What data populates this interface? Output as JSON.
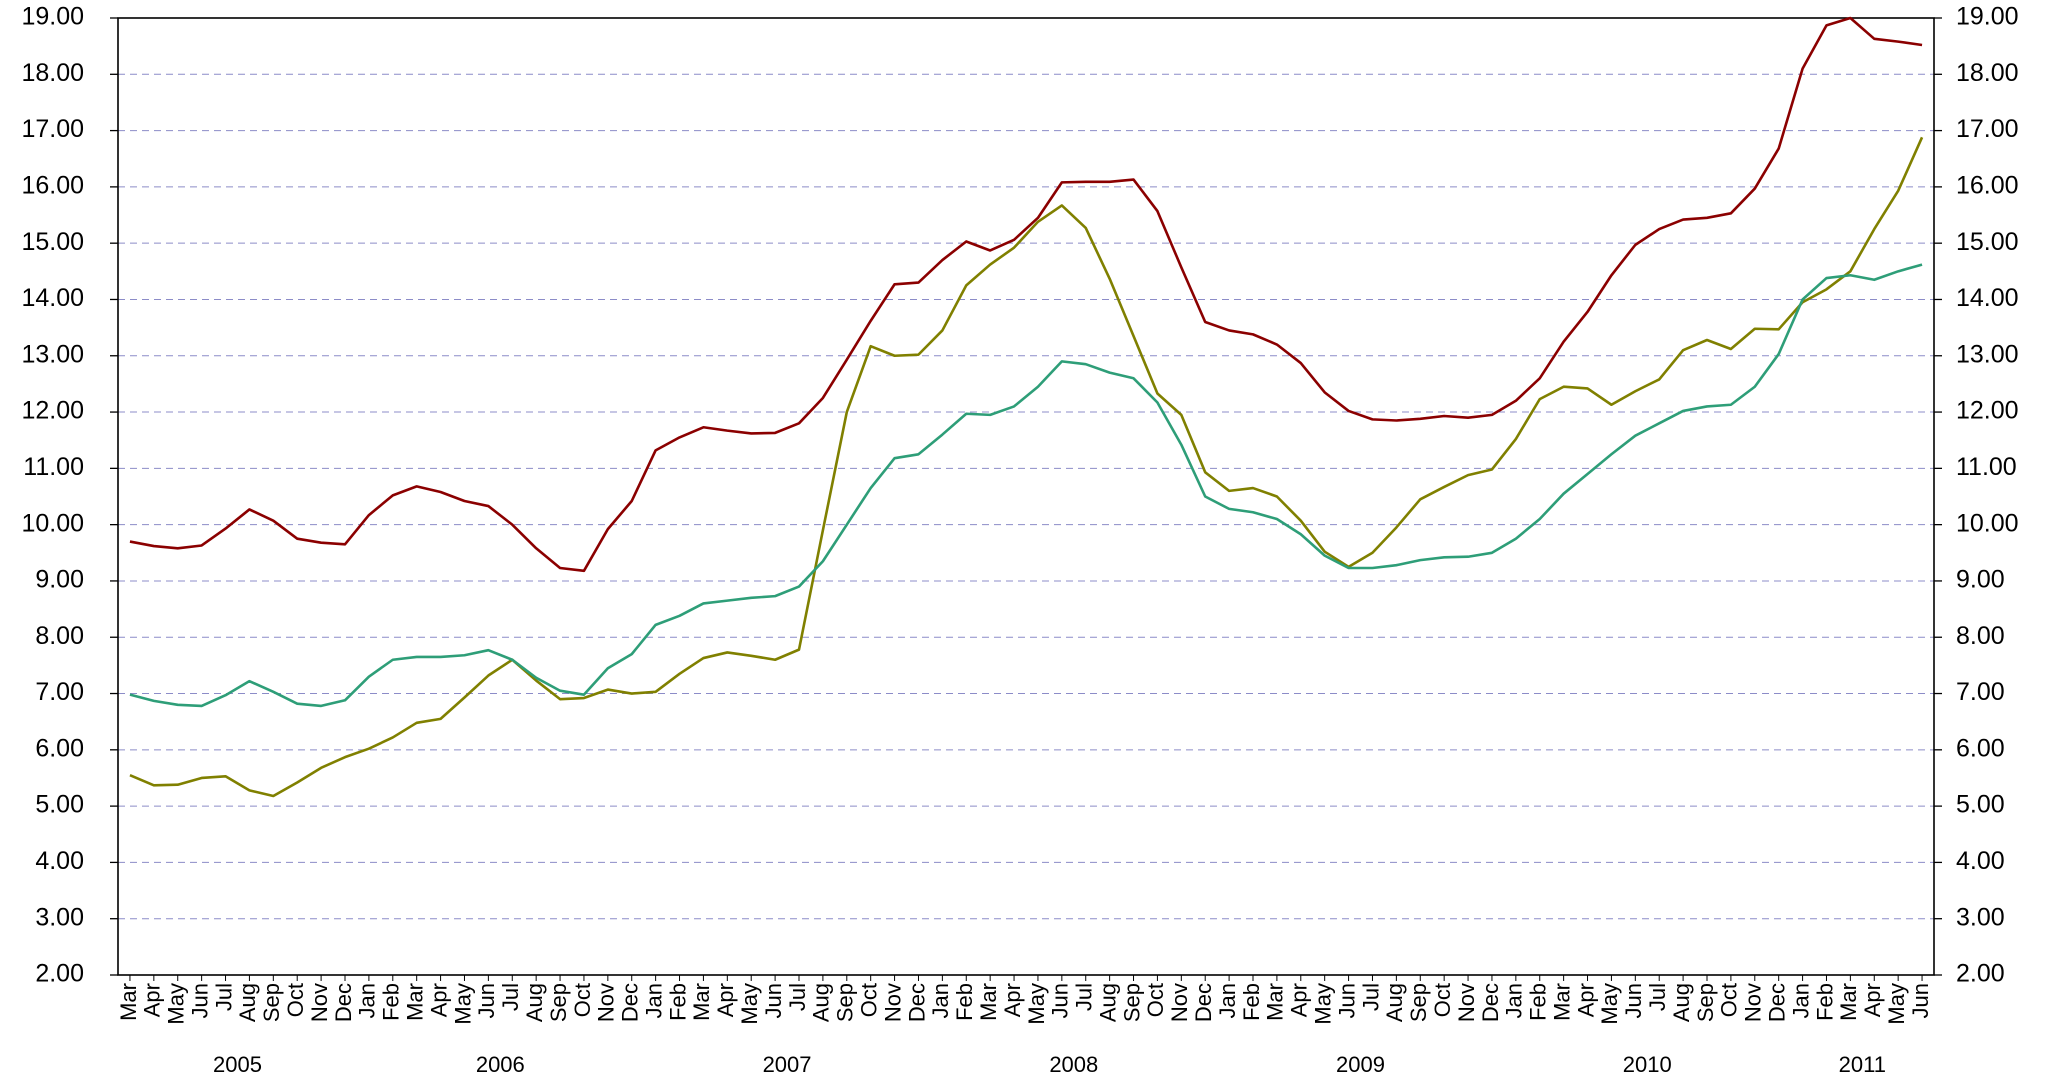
{
  "chart_data": {
    "type": "line",
    "categories": [
      "Mar",
      "Apr",
      "May",
      "Jun",
      "Jul",
      "Aug",
      "Sep",
      "Oct",
      "Nov",
      "Dec",
      "Jan",
      "Feb",
      "Mar",
      "Apr",
      "May",
      "Jun",
      "Jul",
      "Aug",
      "Sep",
      "Oct",
      "Nov",
      "Dec",
      "Jan",
      "Feb",
      "Mar",
      "Apr",
      "May",
      "Jun",
      "Jul",
      "Aug",
      "Sep",
      "Oct",
      "Nov",
      "Dec",
      "Jan",
      "Feb",
      "Mar",
      "Apr",
      "May",
      "Jun",
      "Jul",
      "Aug",
      "Sep",
      "Oct",
      "Nov",
      "Dec",
      "Jan",
      "Feb",
      "Mar",
      "Apr",
      "May",
      "Jun",
      "Jul",
      "Aug",
      "Sep",
      "Oct",
      "Nov",
      "Dec",
      "Jan",
      "Feb",
      "Mar",
      "Apr",
      "May",
      "Jun",
      "Jul",
      "Aug",
      "Sep",
      "Oct",
      "Nov",
      "Dec",
      "Jan",
      "Feb",
      "Mar",
      "Apr",
      "May",
      "Jun"
    ],
    "years": [
      "2005",
      "2006",
      "2007",
      "2008",
      "2009",
      "2010",
      "2011"
    ],
    "series": [
      {
        "color": "#8b0000",
        "values": [
          9.7,
          9.62,
          9.58,
          9.63,
          9.93,
          10.27,
          10.07,
          9.75,
          9.68,
          9.65,
          10.17,
          10.52,
          10.68,
          10.58,
          10.42,
          10.33,
          10.0,
          9.58,
          9.23,
          9.18,
          9.92,
          10.42,
          11.32,
          11.55,
          11.73,
          11.67,
          11.62,
          11.63,
          11.8,
          12.25,
          12.93,
          13.62,
          14.27,
          14.3,
          14.7,
          15.03,
          14.87,
          15.06,
          15.45,
          16.08,
          16.09,
          16.09,
          16.13,
          15.57,
          14.57,
          13.6,
          13.45,
          13.38,
          13.2,
          12.87,
          12.35,
          12.02,
          11.87,
          11.85,
          11.88,
          11.93,
          11.9,
          11.95,
          12.2,
          12.6,
          13.25,
          13.78,
          14.43,
          14.97,
          15.25,
          15.42,
          15.45,
          15.53,
          15.97,
          16.68,
          18.1,
          18.87,
          19.0,
          18.63,
          18.58,
          18.52
        ]
      },
      {
        "color": "#808000",
        "values": [
          5.55,
          5.37,
          5.38,
          5.5,
          5.53,
          5.28,
          5.18,
          5.42,
          5.68,
          5.87,
          6.02,
          6.22,
          6.48,
          6.55,
          6.93,
          7.32,
          7.6,
          7.23,
          6.9,
          6.92,
          7.07,
          7.0,
          7.03,
          7.35,
          7.63,
          7.73,
          7.67,
          7.6,
          7.78,
          9.9,
          12.0,
          13.17,
          13.0,
          13.02,
          13.45,
          14.25,
          14.62,
          14.92,
          15.38,
          15.67,
          15.27,
          14.37,
          13.35,
          12.33,
          11.95,
          10.93,
          10.6,
          10.65,
          10.5,
          10.07,
          9.52,
          9.25,
          9.5,
          9.95,
          10.45,
          10.67,
          10.88,
          10.98,
          11.52,
          12.23,
          12.45,
          12.42,
          12.13,
          12.37,
          12.58,
          13.1,
          13.28,
          13.12,
          13.48,
          13.47,
          13.95,
          14.18,
          14.5,
          15.25,
          15.93,
          16.88
        ]
      },
      {
        "color": "#2e9e78",
        "values": [
          6.98,
          6.87,
          6.8,
          6.78,
          6.97,
          7.22,
          7.03,
          6.82,
          6.78,
          6.88,
          7.3,
          7.6,
          7.65,
          7.65,
          7.68,
          7.77,
          7.6,
          7.28,
          7.05,
          6.98,
          7.45,
          7.7,
          8.22,
          8.38,
          8.6,
          8.65,
          8.7,
          8.73,
          8.9,
          9.35,
          10.0,
          10.65,
          11.18,
          11.25,
          11.6,
          11.97,
          11.95,
          12.1,
          12.45,
          12.9,
          12.85,
          12.7,
          12.6,
          12.17,
          11.42,
          10.5,
          10.28,
          10.22,
          10.1,
          9.83,
          9.45,
          9.23,
          9.23,
          9.28,
          9.37,
          9.42,
          9.43,
          9.5,
          9.75,
          10.1,
          10.55,
          10.9,
          11.25,
          11.58,
          11.8,
          12.02,
          12.1,
          12.13,
          12.45,
          13.03,
          14.0,
          14.38,
          14.43,
          14.35,
          14.5,
          14.62
        ]
      }
    ],
    "ylim": [
      2,
      19
    ],
    "yticks": [
      {
        "value": 2,
        "label": "2.00"
      },
      {
        "value": 3,
        "label": "3.00"
      },
      {
        "value": 4,
        "label": "4.00"
      },
      {
        "value": 5,
        "label": "5.00"
      },
      {
        "value": 6,
        "label": "6.00"
      },
      {
        "value": 7,
        "label": "7.00"
      },
      {
        "value": 8,
        "label": "8.00"
      },
      {
        "value": 9,
        "label": "9.00"
      },
      {
        "value": 10,
        "label": "10.00"
      },
      {
        "value": 11,
        "label": "11.00"
      },
      {
        "value": 12,
        "label": "12.00"
      },
      {
        "value": 13,
        "label": "13.00"
      },
      {
        "value": 14,
        "label": "14.00"
      },
      {
        "value": 15,
        "label": "15.00"
      },
      {
        "value": 16,
        "label": "16.00"
      },
      {
        "value": 17,
        "label": "17.00"
      },
      {
        "value": 18,
        "label": "18.00"
      },
      {
        "value": 19,
        "label": "19.00"
      }
    ],
    "y2lim": [
      2,
      19
    ],
    "y2ticks": [
      {
        "value": 2,
        "label": "2.00"
      },
      {
        "value": 3,
        "label": "3.00"
      },
      {
        "value": 4,
        "label": "4.00"
      },
      {
        "value": 5,
        "label": "5.00"
      },
      {
        "value": 6,
        "label": "6.00"
      },
      {
        "value": 7,
        "label": "7.00"
      },
      {
        "value": 8,
        "label": "8.00"
      },
      {
        "value": 9,
        "label": "9.00"
      },
      {
        "value": 10,
        "label": "10.00"
      },
      {
        "value": 11,
        "label": "11.00"
      },
      {
        "value": 12,
        "label": "12.00"
      },
      {
        "value": 13,
        "label": "13.00"
      },
      {
        "value": 14,
        "label": "14.00"
      },
      {
        "value": 15,
        "label": "15.00"
      },
      {
        "value": 16,
        "label": "16.00"
      },
      {
        "value": 17,
        "label": "17.00"
      },
      {
        "value": 18,
        "label": "18.00"
      },
      {
        "value": 19,
        "label": "19.00"
      }
    ],
    "grid": true
  }
}
